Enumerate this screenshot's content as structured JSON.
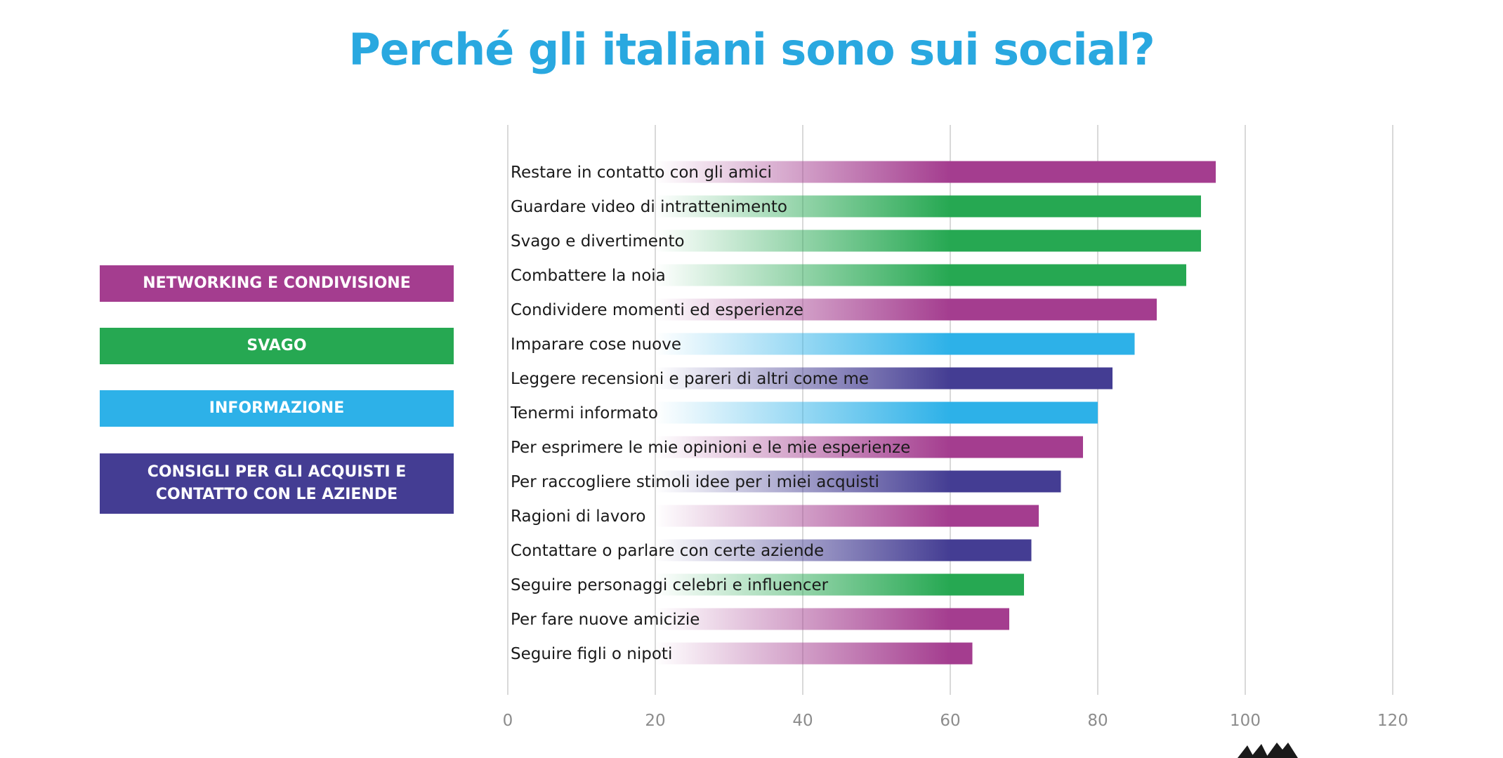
{
  "chart_data": {
    "type": "bar",
    "orientation": "horizontal",
    "title": "Perché gli italiani sono sui social?",
    "xlim": [
      0,
      120
    ],
    "x_ticks": [
      0,
      20,
      40,
      60,
      80,
      100,
      120
    ],
    "grid": true,
    "legend_placement": "left",
    "groups": [
      {
        "key": "networking",
        "lines": [
          "NETWORKING E CONDIVISIONE"
        ],
        "color": "#a43d8f"
      },
      {
        "key": "svago",
        "lines": [
          "SVAGO"
        ],
        "color": "#26a852"
      },
      {
        "key": "informazione",
        "lines": [
          "INFORMAZIONE"
        ],
        "color": "#2db1e8"
      },
      {
        "key": "acquisti",
        "lines": [
          "CONSIGLI PER GLI ACQUISTI E",
          "CONTATTO CON LE AZIENDE"
        ],
        "color": "#443d93"
      }
    ],
    "bars": [
      {
        "label": "Restare in contatto con gli amici",
        "value": 96,
        "group": "networking"
      },
      {
        "label": "Guardare video di intrattenimento",
        "value": 94,
        "group": "svago"
      },
      {
        "label": "Svago e divertimento",
        "value": 94,
        "group": "svago"
      },
      {
        "label": "Combattere la noia",
        "value": 92,
        "group": "svago"
      },
      {
        "label": "Condividere momenti  ed esperienze",
        "value": 88,
        "group": "networking"
      },
      {
        "label": "Imparare cose nuove",
        "value": 85,
        "group": "informazione"
      },
      {
        "label": "Leggere recensioni e pareri di altri come me",
        "value": 82,
        "group": "acquisti"
      },
      {
        "label": "Tenermi informato",
        "value": 80,
        "group": "informazione"
      },
      {
        "label": "Per esprimere le mie opinioni e le mie esperienze",
        "value": 78,
        "group": "networking"
      },
      {
        "label": "Per raccogliere stimoli idee per i miei acquisti",
        "value": 75,
        "group": "acquisti"
      },
      {
        "label": "Ragioni di lavoro",
        "value": 72,
        "group": "networking"
      },
      {
        "label": "Contattare o parlare con certe aziende",
        "value": 71,
        "group": "acquisti"
      },
      {
        "label": "Seguire personaggi celebri e influencer",
        "value": 70,
        "group": "svago"
      },
      {
        "label": "Per fare nuove amicizie",
        "value": 68,
        "group": "networking"
      },
      {
        "label": "Seguire figli o nipoti",
        "value": 63,
        "group": "networking"
      }
    ]
  }
}
